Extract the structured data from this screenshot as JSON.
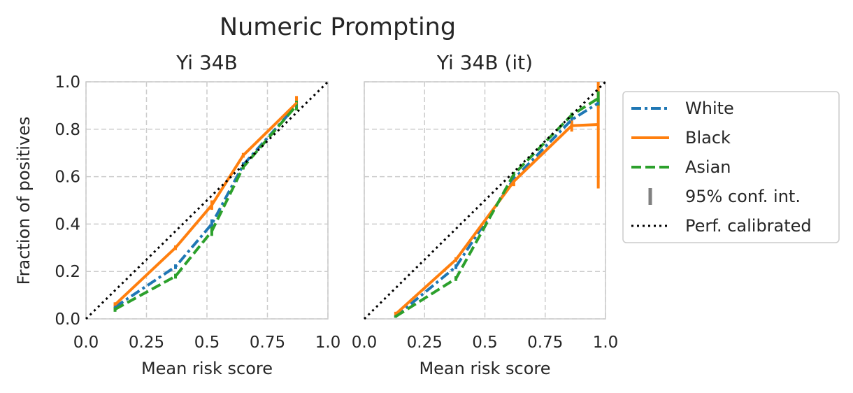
{
  "figure": {
    "suptitle": "Numeric Prompting",
    "ylabel": "Fraction of positives"
  },
  "legend": {
    "items": [
      {
        "label": "White",
        "color": "#1f77b4",
        "style": "dashdot"
      },
      {
        "label": "Black",
        "color": "#ff7f0e",
        "style": "solid"
      },
      {
        "label": "Asian",
        "color": "#2ca02c",
        "style": "dashed"
      },
      {
        "label": "95% conf. int.",
        "color": "#808080",
        "style": "errorbar"
      },
      {
        "label": "Perf. calibrated",
        "color": "#000000",
        "style": "dotted"
      }
    ],
    "placement": "right"
  },
  "chart_data": [
    {
      "type": "line",
      "title": "Yi 34B",
      "xlabel": "Mean risk score",
      "ylabel": "Fraction of positives",
      "xlim": [
        0,
        1
      ],
      "ylim": [
        0,
        1
      ],
      "xticks": [
        "0.0",
        "0.25",
        "0.5",
        "0.75",
        "1.0"
      ],
      "yticks": [
        "0.0",
        "0.2",
        "0.4",
        "0.6",
        "0.8",
        "1.0"
      ],
      "grid": true,
      "series": [
        {
          "name": "White",
          "color": "#1f77b4",
          "dash": "dashdot",
          "x": [
            0.12,
            0.37,
            0.52,
            0.65,
            0.87
          ],
          "y": [
            0.05,
            0.22,
            0.4,
            0.65,
            0.9
          ],
          "ci": [
            [
              0.04,
              0.06
            ],
            [
              0.21,
              0.23
            ],
            [
              0.38,
              0.42
            ],
            [
              0.64,
              0.66
            ],
            [
              0.88,
              0.92
            ]
          ]
        },
        {
          "name": "Black",
          "color": "#ff7f0e",
          "dash": "solid",
          "x": [
            0.12,
            0.37,
            0.52,
            0.65,
            0.87
          ],
          "y": [
            0.06,
            0.3,
            0.48,
            0.69,
            0.91
          ],
          "ci": [
            [
              0.05,
              0.07
            ],
            [
              0.29,
              0.31
            ],
            [
              0.46,
              0.5
            ],
            [
              0.68,
              0.7
            ],
            [
              0.88,
              0.94
            ]
          ]
        },
        {
          "name": "Asian",
          "color": "#2ca02c",
          "dash": "dashed",
          "x": [
            0.12,
            0.37,
            0.52,
            0.65,
            0.87
          ],
          "y": [
            0.04,
            0.18,
            0.37,
            0.64,
            0.9
          ],
          "ci": [
            [
              0.03,
              0.05
            ],
            [
              0.17,
              0.19
            ],
            [
              0.35,
              0.39
            ],
            [
              0.63,
              0.65
            ],
            [
              0.88,
              0.92
            ]
          ]
        }
      ],
      "reference": {
        "name": "Perf. calibrated",
        "x": [
          0,
          1
        ],
        "y": [
          0,
          1
        ]
      }
    },
    {
      "type": "line",
      "title": "Yi 34B (it)",
      "xlabel": "Mean risk score",
      "xlim": [
        0,
        1
      ],
      "ylim": [
        0,
        1
      ],
      "xticks": [
        "0.0",
        "0.25",
        "0.5",
        "0.75",
        "1.0"
      ],
      "grid": true,
      "series": [
        {
          "name": "White",
          "color": "#1f77b4",
          "dash": "dashdot",
          "x": [
            0.13,
            0.38,
            0.62,
            0.86,
            0.97
          ],
          "y": [
            0.01,
            0.22,
            0.59,
            0.84,
            0.91
          ],
          "ci": [
            [
              0.005,
              0.015
            ],
            [
              0.21,
              0.23
            ],
            [
              0.58,
              0.6
            ],
            [
              0.82,
              0.86
            ],
            [
              0.89,
              0.93
            ]
          ]
        },
        {
          "name": "Black",
          "color": "#ff7f0e",
          "dash": "solid",
          "x": [
            0.13,
            0.38,
            0.62,
            0.86,
            0.97
          ],
          "y": [
            0.02,
            0.25,
            0.58,
            0.815,
            0.82
          ],
          "ci": [
            [
              0.01,
              0.03
            ],
            [
              0.24,
              0.26
            ],
            [
              0.56,
              0.6
            ],
            [
              0.79,
              0.84
            ],
            [
              0.55,
              1.0
            ]
          ]
        },
        {
          "name": "Asian",
          "color": "#2ca02c",
          "dash": "dashed",
          "x": [
            0.13,
            0.38,
            0.62,
            0.86,
            0.97
          ],
          "y": [
            0.01,
            0.17,
            0.61,
            0.86,
            0.93
          ],
          "ci": [
            [
              0.005,
              0.015
            ],
            [
              0.16,
              0.18
            ],
            [
              0.6,
              0.62
            ],
            [
              0.85,
              0.87
            ],
            [
              0.9,
              0.96
            ]
          ]
        }
      ],
      "reference": {
        "name": "Perf. calibrated",
        "x": [
          0,
          1
        ],
        "y": [
          0,
          1
        ]
      }
    }
  ]
}
